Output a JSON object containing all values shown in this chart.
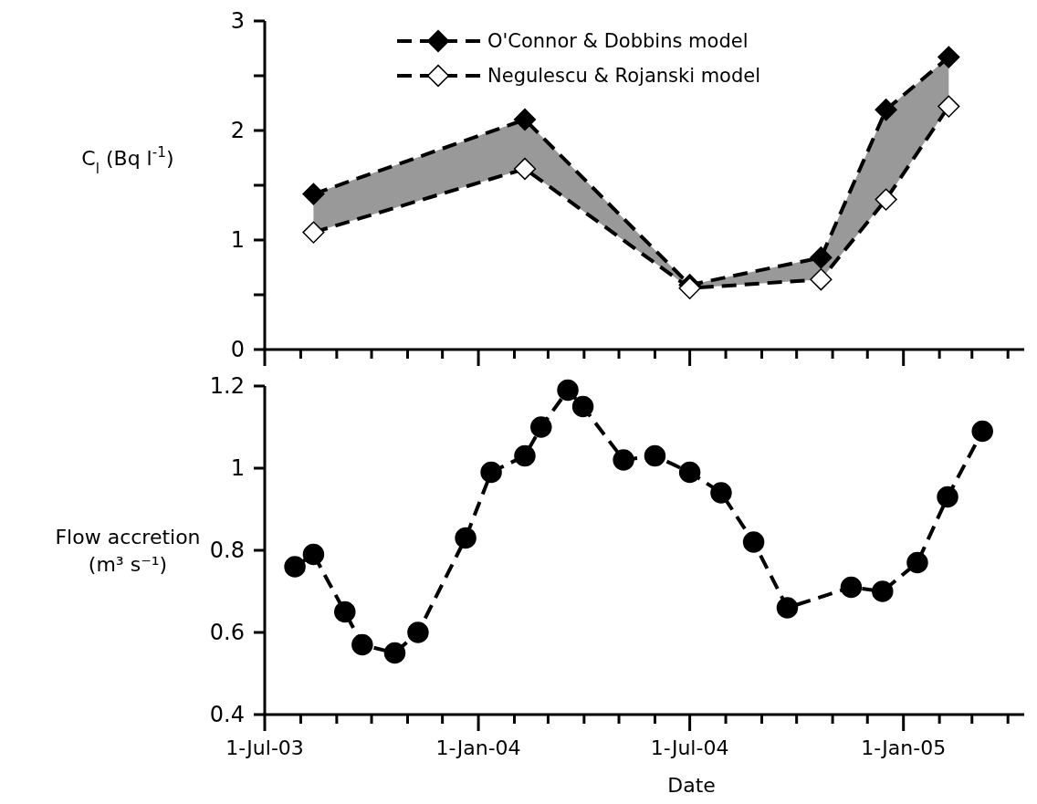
{
  "chart_data": [
    {
      "type": "line",
      "ylabel": "C$_{l}$ (Bq l$^{-1}$)",
      "xlim": [
        "2003-07-01",
        "2005-04-15"
      ],
      "xticks": [
        {
          "value": "2003-07-01",
          "label": null
        },
        {
          "value": "2003-08-01",
          "label": null
        },
        {
          "value": "2003-09-01",
          "label": null
        },
        {
          "value": "2003-10-01",
          "label": null
        },
        {
          "value": "2003-11-01",
          "label": null
        },
        {
          "value": "2003-12-01",
          "label": null
        },
        {
          "value": "2004-01-01",
          "label": null
        },
        {
          "value": "2004-02-01",
          "label": null
        },
        {
          "value": "2004-03-01",
          "label": null
        },
        {
          "value": "2004-04-01",
          "label": null
        },
        {
          "value": "2004-05-01",
          "label": null
        },
        {
          "value": "2004-06-01",
          "label": null
        },
        {
          "value": "2004-07-01",
          "label": null
        },
        {
          "value": "2004-08-01",
          "label": null
        },
        {
          "value": "2004-09-01",
          "label": null
        },
        {
          "value": "2004-10-01",
          "label": null
        },
        {
          "value": "2004-11-01",
          "label": null
        },
        {
          "value": "2004-12-01",
          "label": null
        },
        {
          "value": "2005-01-01",
          "label": null
        },
        {
          "value": "2005-02-01",
          "label": null
        },
        {
          "value": "2005-03-01",
          "label": null
        },
        {
          "value": "2005-04-01",
          "label": null
        }
      ],
      "ylim": [
        0,
        3
      ],
      "yticks": [
        0,
        {
          "value": 0.5,
          "label": null
        },
        1,
        {
          "value": 1.5,
          "label": null
        },
        2,
        {
          "value": 2.5,
          "label": null
        },
        3
      ],
      "tick_labels": "y",
      "legend": "top",
      "line_style": "dashed",
      "grid": false,
      "x": [
        "2003-08-12",
        "2004-02-10",
        "2004-07-01",
        "2004-10-22",
        "2004-12-17",
        "2005-02-09"
      ],
      "series": [
        {
          "name": "O'Connor & Dobbins model",
          "color": "#000000",
          "marker": "diamond",
          "values": [
            1.42,
            2.1,
            0.59,
            0.84,
            2.19,
            2.67
          ],
          "lower": [
            1.07,
            1.65,
            0.56,
            0.64,
            1.37,
            2.22
          ],
          "upper": [
            1.42,
            2.1,
            0.59,
            0.84,
            2.19,
            2.67
          ]
        },
        {
          "name": "Negulescu & Rojanski model",
          "color": "#000000",
          "colors": [
            "#ffffff",
            "#ffffff",
            "#ffffff",
            "#ffffff",
            "#ffffff",
            "#ffffff"
          ],
          "marker": "diamond",
          "values": [
            1.07,
            1.65,
            0.56,
            0.64,
            1.37,
            2.22
          ]
        }
      ]
    },
    {
      "type": "line",
      "ylabel": "Flow accretion (m³ s⁻¹)",
      "xlabel": "Date",
      "xlim": [
        "2003-07-01",
        "2005-04-15"
      ],
      "xticks": [
        {
          "value": "2003-07-01",
          "label": "1-Jul-03"
        },
        {
          "value": "2003-08-01",
          "label": null
        },
        {
          "value": "2003-09-01",
          "label": null
        },
        {
          "value": "2003-10-01",
          "label": null
        },
        {
          "value": "2003-11-01",
          "label": null
        },
        {
          "value": "2003-12-01",
          "label": null
        },
        {
          "value": "2004-01-01",
          "label": "1-Jan-04"
        },
        {
          "value": "2004-02-01",
          "label": null
        },
        {
          "value": "2004-03-01",
          "label": null
        },
        {
          "value": "2004-04-01",
          "label": null
        },
        {
          "value": "2004-05-01",
          "label": null
        },
        {
          "value": "2004-06-01",
          "label": null
        },
        {
          "value": "2004-07-01",
          "label": "1-Jul-04"
        },
        {
          "value": "2004-08-01",
          "label": null
        },
        {
          "value": "2004-09-01",
          "label": null
        },
        {
          "value": "2004-10-01",
          "label": null
        },
        {
          "value": "2004-11-01",
          "label": null
        },
        {
          "value": "2004-12-01",
          "label": null
        },
        {
          "value": "2005-01-01",
          "label": "1-Jan-05"
        },
        {
          "value": "2005-02-01",
          "label": null
        },
        {
          "value": "2005-03-01",
          "label": null
        },
        {
          "value": "2005-04-01",
          "label": null
        }
      ],
      "ylim": [
        0.4,
        1.2
      ],
      "yticks": [
        0.4,
        0.6,
        0.8,
        1,
        1.2
      ],
      "legend": false,
      "line_style": "dashed",
      "marker": "circle",
      "grid": false,
      "x": [
        "2003-07-27",
        "2003-08-12",
        "2003-09-08",
        "2003-09-23",
        "2003-10-21",
        "2003-11-10",
        "2003-12-21",
        "2004-01-12",
        "2004-02-10",
        "2004-02-24",
        "2004-03-18",
        "2004-03-31",
        "2004-05-05",
        "2004-06-01",
        "2004-07-01",
        "2004-07-28",
        "2004-08-25",
        "2004-09-23",
        "2004-11-17",
        "2004-12-14",
        "2005-01-13",
        "2005-02-08",
        "2005-03-10"
      ],
      "series": [
        {
          "color": "#000000",
          "values": [
            0.76,
            0.79,
            0.65,
            0.57,
            0.55,
            0.6,
            0.83,
            0.99,
            1.03,
            1.1,
            1.19,
            1.15,
            1.02,
            1.03,
            0.99,
            0.94,
            0.82,
            0.66,
            0.71,
            0.7,
            0.77,
            0.93,
            1.09
          ]
        }
      ]
    }
  ]
}
